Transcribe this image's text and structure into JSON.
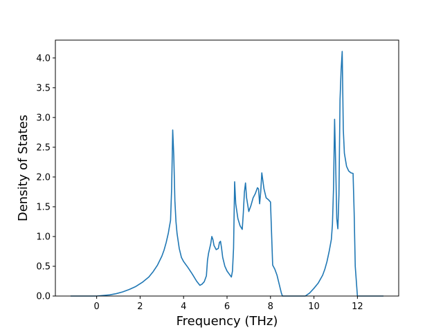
{
  "chart_data": {
    "type": "line",
    "title": "",
    "xlabel": "Frequency (THz)",
    "ylabel": "Density of States",
    "xlim": [
      -1.9,
      13.9
    ],
    "ylim": [
      0,
      4.3
    ],
    "xticks": [
      "0",
      "2",
      "4",
      "6",
      "8",
      "10",
      "12"
    ],
    "yticks": [
      "0.0",
      "0.5",
      "1.0",
      "1.5",
      "2.0",
      "2.5",
      "3.0",
      "3.5",
      "4.0"
    ],
    "grid": false,
    "legend": "none",
    "line_color": "#1f77b4",
    "series": [
      {
        "x": [
          -1.2,
          -0.6,
          0,
          0.3,
          0.6,
          0.9,
          1.2,
          1.5,
          1.8,
          2.1,
          2.4,
          2.6,
          2.8,
          3.0,
          3.1,
          3.2,
          3.3,
          3.35,
          3.4,
          3.45,
          3.5,
          3.55,
          3.6,
          3.65,
          3.7,
          3.8,
          3.9,
          4.0,
          4.2,
          4.4,
          4.6,
          4.75,
          4.85,
          4.95,
          5.05,
          5.1,
          5.15,
          5.2,
          5.25,
          5.3,
          5.35,
          5.4,
          5.5,
          5.6,
          5.65,
          5.7,
          5.75,
          5.8,
          5.9,
          6.0,
          6.1,
          6.2,
          6.25,
          6.3,
          6.35,
          6.4,
          6.5,
          6.6,
          6.7,
          6.75,
          6.8,
          6.85,
          6.9,
          7.0,
          7.1,
          7.2,
          7.3,
          7.4,
          7.45,
          7.5,
          7.55,
          7.6,
          7.7,
          7.8,
          7.9,
          8.0,
          8.1,
          8.2,
          8.3,
          8.4,
          8.5,
          8.55,
          8.6,
          9.6,
          9.8,
          10.0,
          10.2,
          10.4,
          10.5,
          10.6,
          10.7,
          10.8,
          10.85,
          10.9,
          10.95,
          11.0,
          11.05,
          11.1,
          11.15,
          11.2,
          11.25,
          11.3,
          11.35,
          11.4,
          11.5,
          11.6,
          11.7,
          11.8,
          11.85,
          11.9,
          12.0,
          12.5,
          13.2
        ],
        "y": [
          0.0,
          0.0,
          0.0,
          0.01,
          0.02,
          0.04,
          0.07,
          0.11,
          0.16,
          0.23,
          0.32,
          0.41,
          0.52,
          0.67,
          0.77,
          0.9,
          1.06,
          1.17,
          1.27,
          1.8,
          2.79,
          2.35,
          1.6,
          1.25,
          1.05,
          0.8,
          0.65,
          0.58,
          0.48,
          0.37,
          0.25,
          0.18,
          0.2,
          0.24,
          0.34,
          0.6,
          0.72,
          0.8,
          0.88,
          1.0,
          0.95,
          0.85,
          0.78,
          0.8,
          0.9,
          0.92,
          0.8,
          0.65,
          0.5,
          0.42,
          0.37,
          0.32,
          0.42,
          0.8,
          1.92,
          1.55,
          1.3,
          1.18,
          1.12,
          1.4,
          1.75,
          1.9,
          1.65,
          1.42,
          1.52,
          1.65,
          1.72,
          1.82,
          1.8,
          1.55,
          1.75,
          2.07,
          1.8,
          1.65,
          1.62,
          1.58,
          0.52,
          0.45,
          0.35,
          0.2,
          0.05,
          0.0,
          0.0,
          0.0,
          0.05,
          0.13,
          0.22,
          0.35,
          0.45,
          0.58,
          0.75,
          0.95,
          1.2,
          1.8,
          2.97,
          2.2,
          1.3,
          1.13,
          1.7,
          3.3,
          3.8,
          4.11,
          2.8,
          2.4,
          2.18,
          2.1,
          2.07,
          2.06,
          1.4,
          0.5,
          0.0,
          0.0,
          0.0
        ]
      }
    ]
  }
}
